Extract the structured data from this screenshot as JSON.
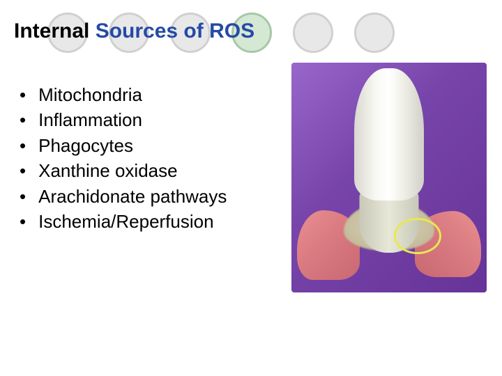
{
  "title": {
    "prefix": "Internal ",
    "highlight": "Sources of ROS"
  },
  "bullets": [
    "Mitochondria",
    "Inflammation",
    "Phagocytes",
    "Xanthine oxidase",
    "Arachidonate pathways",
    "Ischemia/Reperfusion"
  ],
  "decorativeCircles": {
    "colors": [
      "#e8e8e8",
      "#e8e8e8",
      "#e8e8e8",
      "#d4e8d4",
      "#e8e8e8",
      "#e8e8e8"
    ],
    "borderColor": "#d0d0d0",
    "borderColorAccent": "#a8c8a8"
  },
  "imageStyling": {
    "background_gradient": [
      "#9966cc",
      "#7744aa",
      "#663399"
    ],
    "tooth_colors": [
      "#d8d8d0",
      "#f8f8f2",
      "#ffffff",
      "#f0f0e8",
      "#d0d0c8"
    ],
    "gum_colors": [
      "#e89090",
      "#d87880",
      "#c86870"
    ],
    "highlight_ring": "#e8e850"
  }
}
